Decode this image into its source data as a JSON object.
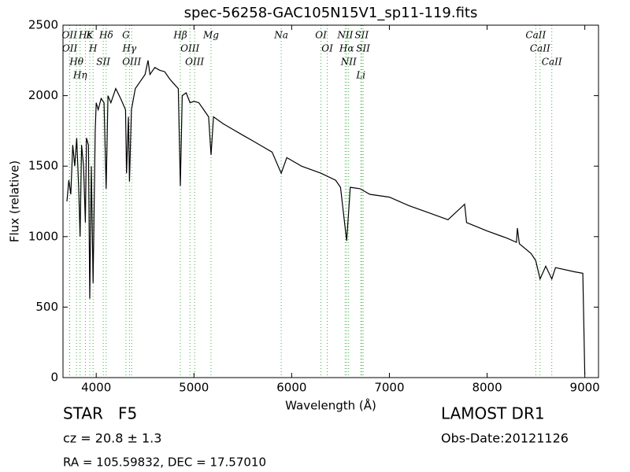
{
  "chart_data": {
    "type": "line",
    "title": "spec-56258-GAC105N15V1_sp11-119.fits",
    "xlabel": "Wavelength (Å)",
    "ylabel": "Flux (relative)",
    "xlim": [
      3660,
      9140
    ],
    "ylim": [
      0,
      2500
    ],
    "xticks": [
      4000,
      5000,
      6000,
      7000,
      8000,
      9000
    ],
    "yticks": [
      0,
      500,
      1000,
      1500,
      2000,
      2500
    ],
    "color": "#000000",
    "line_color": "#3cb043",
    "lines": [
      {
        "wavelength": 3726,
        "label": "OII"
      },
      {
        "wavelength": 3729,
        "label": "OII"
      },
      {
        "wavelength": 3798,
        "label": "Hθ"
      },
      {
        "wavelength": 3835,
        "label": "Hη"
      },
      {
        "wavelength": 3889,
        "label": "Hε"
      },
      {
        "wavelength": 3934,
        "label": "K"
      },
      {
        "wavelength": 3968,
        "label": "H"
      },
      {
        "wavelength": 4072,
        "label": "SII"
      },
      {
        "wavelength": 4102,
        "label": "Hδ"
      },
      {
        "wavelength": 4304,
        "label": "G"
      },
      {
        "wavelength": 4340,
        "label": "Hγ"
      },
      {
        "wavelength": 4363,
        "label": "OIII"
      },
      {
        "wavelength": 4861,
        "label": "Hβ"
      },
      {
        "wavelength": 4959,
        "label": "OIII"
      },
      {
        "wavelength": 5007,
        "label": "OIII"
      },
      {
        "wavelength": 5175,
        "label": "Mg"
      },
      {
        "wavelength": 5893,
        "label": "Na"
      },
      {
        "wavelength": 6300,
        "label": "OI"
      },
      {
        "wavelength": 6364,
        "label": "OI"
      },
      {
        "wavelength": 6548,
        "label": "NII"
      },
      {
        "wavelength": 6563,
        "label": "Hα"
      },
      {
        "wavelength": 6583,
        "label": "NII"
      },
      {
        "wavelength": 6708,
        "label": "Li"
      },
      {
        "wavelength": 6716,
        "label": "SII"
      },
      {
        "wavelength": 6731,
        "label": "SII"
      },
      {
        "wavelength": 8498,
        "label": "CaII"
      },
      {
        "wavelength": 8542,
        "label": "CaII"
      },
      {
        "wavelength": 8662,
        "label": "CaII"
      }
    ],
    "x": [
      3700,
      3720,
      3740,
      3760,
      3780,
      3800,
      3820,
      3835,
      3850,
      3870,
      3889,
      3900,
      3920,
      3934,
      3950,
      3968,
      3990,
      4000,
      4020,
      4050,
      4080,
      4102,
      4120,
      4150,
      4200,
      4250,
      4300,
      4310,
      4330,
      4340,
      4360,
      4400,
      4450,
      4500,
      4530,
      4550,
      4600,
      4650,
      4700,
      4750,
      4800,
      4840,
      4861,
      4880,
      4920,
      4960,
      5000,
      5050,
      5100,
      5150,
      5175,
      5200,
      5300,
      5400,
      5500,
      5600,
      5700,
      5800,
      5893,
      5950,
      6100,
      6300,
      6450,
      6500,
      6563,
      6600,
      6700,
      6800,
      7000,
      7200,
      7400,
      7600,
      7770,
      7790,
      8000,
      8200,
      8300,
      8310,
      8330,
      8450,
      8498,
      8542,
      8600,
      8662,
      8700,
      8900,
      8980,
      9000
    ],
    "values": [
      1250,
      1400,
      1300,
      1650,
      1500,
      1700,
      1350,
      1000,
      1650,
      1500,
      1100,
      1700,
      1650,
      560,
      1500,
      670,
      1750,
      1950,
      1900,
      1980,
      1950,
      1340,
      2000,
      1950,
      2050,
      1980,
      1900,
      1450,
      1850,
      1390,
      1900,
      2050,
      2100,
      2150,
      2250,
      2150,
      2200,
      2180,
      2170,
      2120,
      2080,
      2050,
      1360,
      2000,
      2020,
      1950,
      1960,
      1950,
      1900,
      1850,
      1580,
      1850,
      1800,
      1760,
      1720,
      1680,
      1640,
      1600,
      1450,
      1560,
      1500,
      1450,
      1400,
      1350,
      970,
      1350,
      1340,
      1300,
      1280,
      1220,
      1170,
      1120,
      1230,
      1100,
      1040,
      990,
      960,
      1060,
      950,
      880,
      830,
      700,
      790,
      700,
      780,
      750,
      740,
      20
    ],
    "annotations": [
      "STAR   F5",
      "cz = 20.8 ± 1.3",
      "RA = 105.59832, DEC = 17.57010",
      "LAMOST DR1",
      "Obs-Date:20121126"
    ]
  }
}
